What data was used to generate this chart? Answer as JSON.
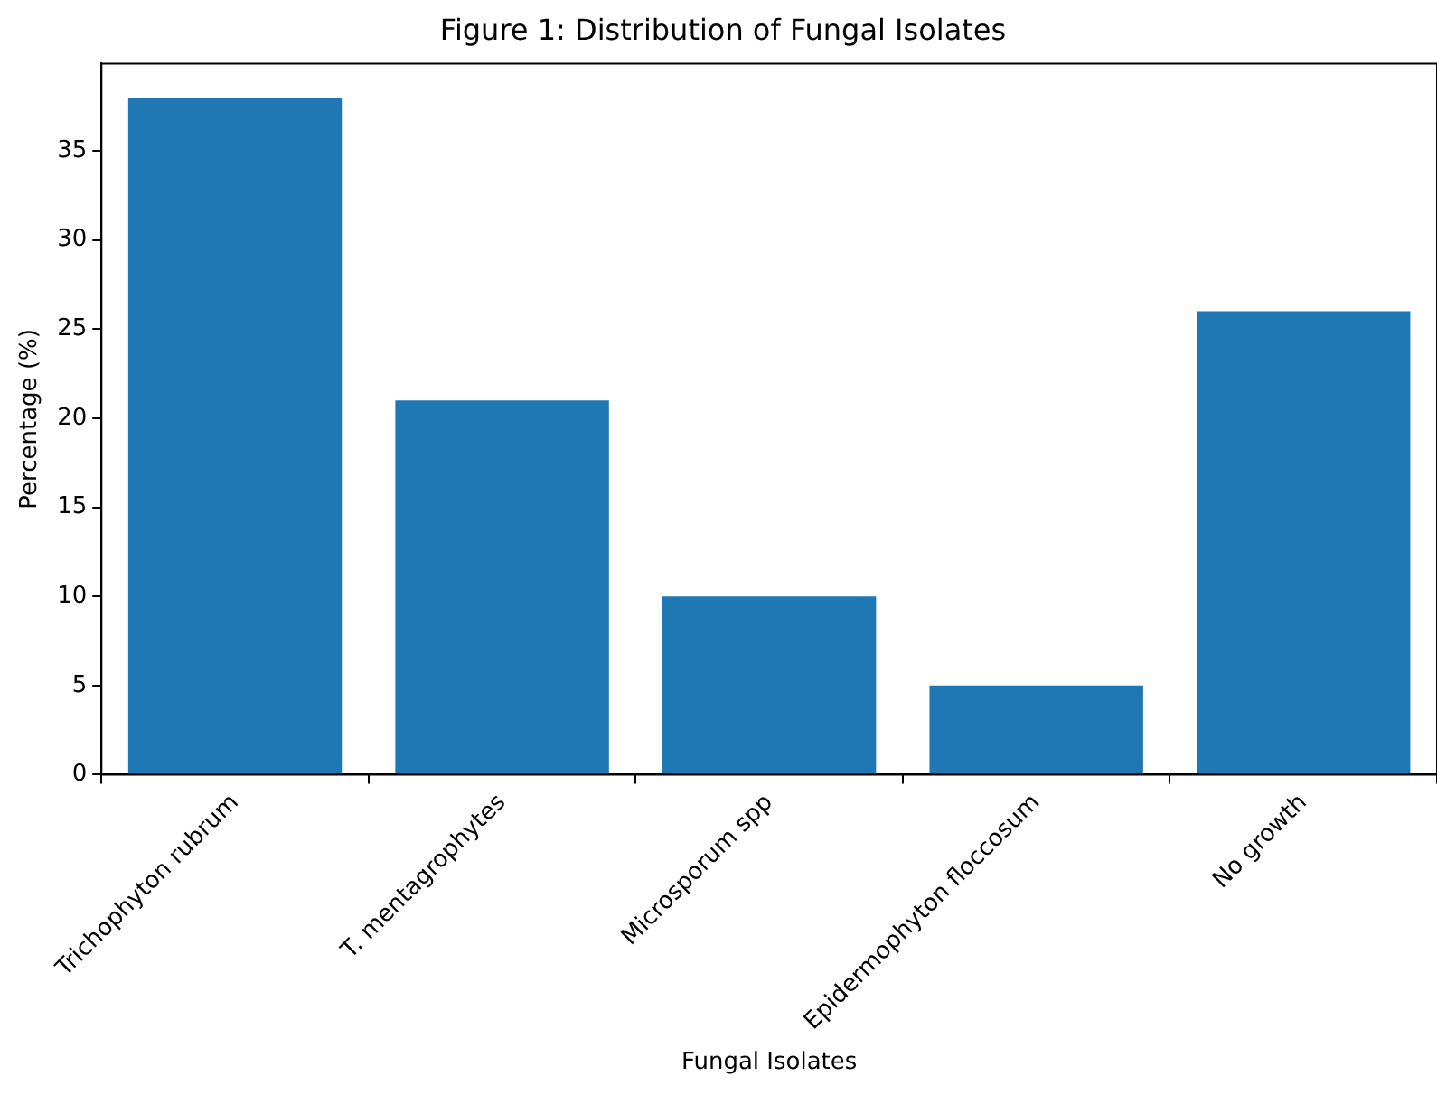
{
  "chart_data": {
    "type": "bar",
    "title": "Figure 1: Distribution of Fungal Isolates",
    "xlabel": "Fungal Isolates",
    "ylabel": "Percentage (%)",
    "categories": [
      "Trichophyton rubrum",
      "T. mentagrophytes",
      "Microsporum spp",
      "Epidermophyton floccosum",
      "No growth"
    ],
    "values": [
      38,
      21,
      10,
      5,
      26
    ],
    "color": "#1f77b4",
    "ylim": [
      0,
      39.9
    ],
    "yticks": [
      0,
      5,
      10,
      15,
      20,
      25,
      30,
      35
    ],
    "grid": false,
    "legend": false
  }
}
